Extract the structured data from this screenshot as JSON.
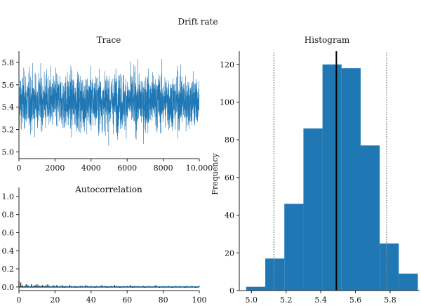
{
  "figure_title": "Drift rate",
  "colors": {
    "accent": "#1f77b4",
    "spike": "#222222",
    "mean_line": "#000000",
    "ci_line": "#888888"
  },
  "chart_data": [
    {
      "id": "trace",
      "type": "line",
      "title": "Trace",
      "xlabel": "",
      "ylabel": "",
      "x_ticks": [
        "0",
        "2000",
        "4000",
        "6000",
        "8000",
        "10,000"
      ],
      "x_tick_values": [
        0,
        2000,
        4000,
        6000,
        8000,
        10000
      ],
      "y_ticks": [
        "5.0",
        "5.2",
        "5.4",
        "5.6",
        "5.8"
      ],
      "y_tick_values": [
        5.0,
        5.2,
        5.4,
        5.6,
        5.8
      ],
      "xlim": [
        0,
        10000
      ],
      "ylim": [
        4.94,
        5.9
      ],
      "n_samples": 10000,
      "summary": {
        "mean": 5.45,
        "typical_low": 5.25,
        "typical_high": 5.65,
        "min": 5.04,
        "max": 5.83
      }
    },
    {
      "id": "autocorrelation",
      "type": "bar",
      "title": "Autocorrelation",
      "xlabel": "",
      "ylabel": "",
      "x_ticks": [
        "0",
        "20",
        "40",
        "60",
        "80",
        "100"
      ],
      "x_tick_values": [
        0,
        20,
        40,
        60,
        80,
        100
      ],
      "y_ticks": [
        "0.0",
        "0.2",
        "0.4",
        "0.6",
        "0.8",
        "1.0"
      ],
      "y_tick_values": [
        0.0,
        0.2,
        0.4,
        0.6,
        0.8,
        1.0
      ],
      "xlim": [
        0,
        100
      ],
      "ylim": [
        -0.04,
        1.1
      ],
      "lags": [
        0,
        1,
        2,
        3,
        4,
        5,
        6,
        7,
        8,
        9,
        10,
        11,
        12,
        13,
        14,
        15,
        16,
        17,
        18,
        19,
        20,
        21,
        22,
        23,
        24,
        25,
        26,
        27,
        28,
        29,
        30,
        31,
        32,
        33,
        34,
        35,
        36,
        37,
        38,
        39,
        40,
        41,
        42,
        43,
        44,
        45,
        46,
        47,
        48,
        49,
        50,
        51,
        52,
        53,
        54,
        55,
        56,
        57,
        58,
        59,
        60,
        61,
        62,
        63,
        64,
        65,
        66,
        67,
        68,
        69,
        70,
        71,
        72,
        73,
        74,
        75,
        76,
        77,
        78,
        79,
        80,
        81,
        82,
        83,
        84,
        85,
        86,
        87,
        88,
        89,
        90,
        91,
        92,
        93,
        94,
        95,
        96,
        97,
        98,
        99,
        100
      ],
      "values": [
        0.07,
        0.05,
        0.02,
        0.01,
        0.03,
        0.02,
        0.0,
        0.03,
        0.01,
        0.02,
        0.03,
        0.02,
        0.01,
        0.02,
        0.01,
        0.02,
        0.03,
        0.01,
        0.0,
        0.02,
        0.01,
        0.02,
        0.0,
        0.01,
        0.02,
        -0.01,
        0.01,
        0.0,
        0.02,
        0.01,
        0.0,
        0.01,
        -0.01,
        0.0,
        0.01,
        0.01,
        0.0,
        0.02,
        0.01,
        0.0,
        0.01,
        0.0,
        -0.01,
        0.01,
        0.0,
        0.01,
        0.02,
        0.0,
        0.01,
        -0.01,
        0.0,
        0.01,
        0.0,
        0.02,
        0.01,
        0.0,
        -0.01,
        0.0,
        0.01,
        0.0,
        0.01,
        0.0,
        0.02,
        -0.01,
        0.01,
        0.0,
        0.01,
        0.0,
        0.0,
        0.01,
        -0.01,
        0.0,
        0.01,
        0.0,
        0.0,
        0.01,
        0.02,
        0.0,
        -0.01,
        0.0,
        0.01,
        0.0,
        0.0,
        0.01,
        0.0,
        -0.01,
        0.0,
        0.01,
        0.0,
        0.01,
        0.0,
        0.0,
        -0.01,
        0.01,
        0.0,
        0.0,
        0.01,
        0.0,
        -0.01,
        0.0,
        0.01
      ]
    },
    {
      "id": "histogram",
      "type": "bar",
      "title": "Histogram",
      "xlabel": "",
      "ylabel": "Frequency",
      "x_ticks": [
        "5.0",
        "5.2",
        "5.4",
        "5.6",
        "5.8"
      ],
      "x_tick_values": [
        5.0,
        5.2,
        5.4,
        5.6,
        5.8
      ],
      "y_ticks": [
        "0",
        "20",
        "40",
        "60",
        "80",
        "100",
        "120"
      ],
      "y_tick_values": [
        0,
        20,
        40,
        60,
        80,
        100,
        120
      ],
      "xlim": [
        4.93,
        5.97
      ],
      "ylim": [
        0,
        127
      ],
      "bin_edges": [
        4.97,
        5.08,
        5.19,
        5.3,
        5.41,
        5.52,
        5.63,
        5.74,
        5.85,
        5.96
      ],
      "counts": [
        2,
        17,
        46,
        86,
        120,
        118,
        77,
        25,
        9
      ],
      "mean": 5.49,
      "ci_lower": 5.13,
      "ci_upper": 5.78
    }
  ]
}
